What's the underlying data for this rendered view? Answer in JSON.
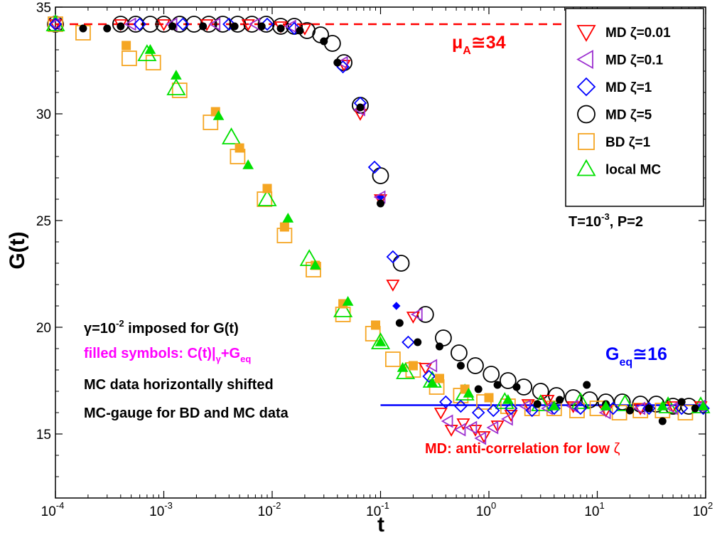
{
  "chart_data": {
    "type": "scatter",
    "xscale": "log",
    "xlim": [
      0.0001,
      100
    ],
    "ylim": [
      12,
      35
    ],
    "xlabel": "t",
    "ylabel": "G(t)",
    "x_tick_labels": [
      {
        "base": "10",
        "exp": "-4"
      },
      {
        "base": "10",
        "exp": "-3"
      },
      {
        "base": "10",
        "exp": "-2"
      },
      {
        "base": "10",
        "exp": "-1"
      },
      {
        "base": "10",
        "exp": "0"
      },
      {
        "base": "10",
        "exp": "1"
      },
      {
        "base": "10",
        "exp": "2"
      }
    ],
    "y_tick_labels": [
      "15",
      "20",
      "25",
      "30",
      "35"
    ],
    "legend": {
      "position": "top-right",
      "entries": [
        {
          "label": "MD ζ=0.01",
          "marker": "triangle-down",
          "color": "#ff0000"
        },
        {
          "label": "MD ζ=0.1",
          "marker": "triangle-left",
          "color": "#9c2fd0"
        },
        {
          "label": "MD ζ=1",
          "marker": "diamond",
          "color": "#0000ff"
        },
        {
          "label": "MD ζ=5",
          "marker": "circle",
          "color": "#000000"
        },
        {
          "label": "BD ζ=1",
          "marker": "square",
          "color": "#f5a623"
        },
        {
          "label": "local MC",
          "marker": "triangle-up",
          "color": "#00e000"
        }
      ]
    },
    "reference_lines": [
      {
        "name": "mu_A",
        "y": 34.2,
        "x_range": [
          0.0001,
          100
        ],
        "style": "dashed",
        "color": "#ff0000"
      },
      {
        "name": "G_eq",
        "y": 16.35,
        "x_range": [
          0.1,
          100
        ],
        "style": "solid",
        "color": "#0000ff"
      }
    ],
    "series": [
      {
        "name": "MD ζ=5 (open)",
        "marker": "circle",
        "color": "#000000",
        "filled": false,
        "x": [
          0.0001,
          0.0004,
          0.00055,
          0.00075,
          0.001,
          0.0014,
          0.0019,
          0.0026,
          0.0035,
          0.0048,
          0.0065,
          0.0088,
          0.012,
          0.016,
          0.021,
          0.028,
          0.036,
          0.046,
          0.065,
          0.1,
          0.155,
          0.26,
          0.38,
          0.53,
          0.75,
          1.05,
          1.5,
          2.1,
          3.0,
          4.2,
          6.0,
          8.5,
          12,
          17,
          25,
          35,
          50,
          70
        ],
        "y": [
          34.2,
          34.2,
          34.2,
          34.2,
          34.2,
          34.2,
          34.2,
          34.2,
          34.2,
          34.2,
          34.2,
          34.2,
          34.1,
          34.1,
          33.9,
          33.7,
          33.3,
          32.4,
          30.4,
          27.1,
          23.0,
          20.6,
          19.5,
          18.8,
          18.2,
          17.8,
          17.5,
          17.2,
          17.0,
          16.8,
          16.7,
          16.6,
          16.5,
          16.5,
          16.4,
          16.4,
          16.3,
          16.3
        ]
      },
      {
        "name": "MD ζ=5 (filled)",
        "marker": "circle",
        "color": "#000000",
        "filled": true,
        "x": [
          0.00018,
          0.0003,
          0.0004,
          0.0012,
          0.0023,
          0.0045,
          0.008,
          0.012,
          0.018,
          0.03,
          0.04,
          0.065,
          0.1,
          0.15,
          0.22,
          0.35,
          0.55,
          0.8,
          1.2,
          1.8,
          2.8,
          4.5,
          8.0,
          12,
          20,
          30,
          40,
          60,
          80
        ],
        "y": [
          34.0,
          34.0,
          34.1,
          34.1,
          34.1,
          34.1,
          34.1,
          34.0,
          33.9,
          33.4,
          32.4,
          30.3,
          25.8,
          20.2,
          19.3,
          19.1,
          18.2,
          17.1,
          17.3,
          17.2,
          16.4,
          16.6,
          17.3,
          16.4,
          16.1,
          16.2,
          15.6,
          16.5,
          16.2
        ]
      },
      {
        "name": "MD ζ=0.01",
        "marker": "triangle-down",
        "color": "#ff0000",
        "filled": false,
        "x": [
          0.0001,
          0.0004,
          0.001,
          0.0025,
          0.006,
          0.012,
          0.02,
          0.046,
          0.065,
          0.1,
          0.13,
          0.2,
          0.26,
          0.36,
          0.45,
          0.58,
          0.75,
          0.9,
          1.2,
          1.6,
          2.3,
          3.5,
          6,
          12,
          25,
          50,
          90
        ],
        "y": [
          34.2,
          34.2,
          34.2,
          34.2,
          34.2,
          34.1,
          34.0,
          32.3,
          30.0,
          26.0,
          22.0,
          20.5,
          18.1,
          16.0,
          15.2,
          15.5,
          15.2,
          14.9,
          15.4,
          15.9,
          16.4,
          16.6,
          16.3,
          16.1,
          16.2,
          16.3,
          16.3
        ]
      },
      {
        "name": "MD ζ=0.1",
        "marker": "triangle-left",
        "color": "#9c2fd0",
        "filled": false,
        "x": [
          0.0001,
          0.0005,
          0.0012,
          0.003,
          0.007,
          0.015,
          0.045,
          0.065,
          0.1,
          0.22,
          0.3,
          0.42,
          0.55,
          0.7,
          0.85,
          1.1,
          1.5,
          2.2,
          3.5,
          6,
          12,
          25,
          50,
          90
        ],
        "y": [
          34.2,
          34.2,
          34.2,
          34.2,
          34.2,
          34.1,
          32.4,
          30.2,
          26.1,
          20.6,
          18.2,
          15.6,
          15.2,
          15.3,
          14.8,
          15.3,
          15.7,
          16.3,
          16.2,
          16.3,
          16.0,
          16.2,
          16.2,
          16.3
        ]
      },
      {
        "name": "MD ζ=1",
        "marker": "diamond",
        "color": "#0000ff",
        "filled": false,
        "x": [
          0.0001,
          0.0006,
          0.0015,
          0.004,
          0.009,
          0.016,
          0.045,
          0.065,
          0.088,
          0.13,
          0.18,
          0.28,
          0.4,
          0.55,
          0.8,
          1.1,
          1.6,
          2.5,
          4,
          7,
          14,
          30,
          60,
          95
        ],
        "y": [
          34.2,
          34.2,
          34.2,
          34.2,
          34.2,
          34.0,
          32.2,
          30.5,
          27.5,
          23.3,
          19.3,
          17.7,
          16.5,
          16.3,
          16.0,
          16.1,
          16.2,
          16.1,
          16.2,
          16.2,
          16.2,
          16.2,
          16.2,
          16.2
        ]
      },
      {
        "name": "MD ζ=1 (filled)",
        "marker": "diamond",
        "color": "#0000ff",
        "filled": true,
        "x": [
          0.1,
          0.14
        ],
        "y": [
          26.1,
          21.0
        ]
      },
      {
        "name": "BD ζ=1",
        "marker": "square",
        "color": "#f5a623",
        "filled": false,
        "x": [
          0.0001,
          0.00018,
          0.00048,
          0.0008,
          0.0014,
          0.0027,
          0.0048,
          0.0085,
          0.013,
          0.024,
          0.045,
          0.085,
          0.13,
          0.2,
          0.33,
          0.55,
          0.9,
          1.5,
          2.5,
          4,
          6.5,
          10,
          16,
          25,
          40,
          65
        ],
        "y": [
          34.2,
          33.8,
          32.6,
          32.4,
          31.1,
          29.6,
          28.0,
          26.0,
          24.3,
          22.7,
          20.6,
          19.7,
          18.5,
          18.0,
          17.2,
          16.8,
          16.5,
          16.3,
          16.2,
          16.2,
          16.1,
          16.2,
          16.0,
          16.1,
          16.1,
          16.0
        ]
      },
      {
        "name": "BD ζ=1 (filled)",
        "marker": "square",
        "color": "#f5a623",
        "filled": true,
        "x": [
          0.00045,
          0.003,
          0.005,
          0.009,
          0.013,
          0.025,
          0.045,
          0.09,
          0.2,
          0.35,
          0.6,
          1.0
        ],
        "y": [
          33.2,
          30.1,
          28.4,
          26.5,
          24.7,
          22.9,
          21.1,
          20.1,
          18.2,
          17.6,
          17.1,
          16.7
        ]
      },
      {
        "name": "local MC",
        "marker": "triangle-up",
        "color": "#00e000",
        "filled": false,
        "x": [
          0.0001,
          0.0007,
          0.0013,
          0.0042,
          0.009,
          0.022,
          0.045,
          0.1,
          0.17,
          0.3,
          0.6,
          1.4,
          3.0,
          7,
          18,
          45,
          90
        ],
        "y": [
          34.2,
          32.8,
          31.2,
          28.9,
          26.0,
          23.2,
          20.8,
          19.3,
          17.9,
          17.5,
          16.9,
          16.5,
          16.4,
          16.5,
          16.4,
          16.3,
          16.3
        ]
      },
      {
        "name": "local MC (filled)",
        "marker": "triangle-up",
        "color": "#00e000",
        "filled": true,
        "x": [
          0.00075,
          0.0013,
          0.0032,
          0.006,
          0.014,
          0.025,
          0.05,
          0.1,
          0.16,
          0.3,
          0.65,
          1.5,
          4,
          12,
          40,
          95
        ],
        "y": [
          33.0,
          31.8,
          29.9,
          27.6,
          25.1,
          22.9,
          21.2,
          19.3,
          18.1,
          17.4,
          16.9,
          16.6,
          16.3,
          16.3,
          16.3,
          16.3
        ]
      }
    ],
    "annotations": {
      "mu_a": {
        "base": "μ",
        "sub": "A",
        "rest": "≅34",
        "color": "#ff0000"
      },
      "g_eq": {
        "base": "G",
        "sub": "eq",
        "rest": "≅16",
        "color": "#0000ff"
      },
      "conditions": {
        "a": "T=10",
        "exp": "-3",
        "b": ", P=2"
      },
      "gamma_note": {
        "a": "γ=10",
        "exp": "-2",
        "b": " imposed for G(t)"
      },
      "filled_note": {
        "a": "filled symbols: C(t)|",
        "sub1": "γ",
        "b": "+G",
        "sub2": "eq",
        "color": "#ff00ff"
      },
      "mc_shift_note": "MC data horizontally shifted",
      "mc_gauge_note": "MC-gauge for BD and MC data",
      "md_anticorr_note": {
        "a": "MD: anti-correlation for low ",
        "b": "ζ",
        "color": "#ff0000"
      }
    }
  }
}
